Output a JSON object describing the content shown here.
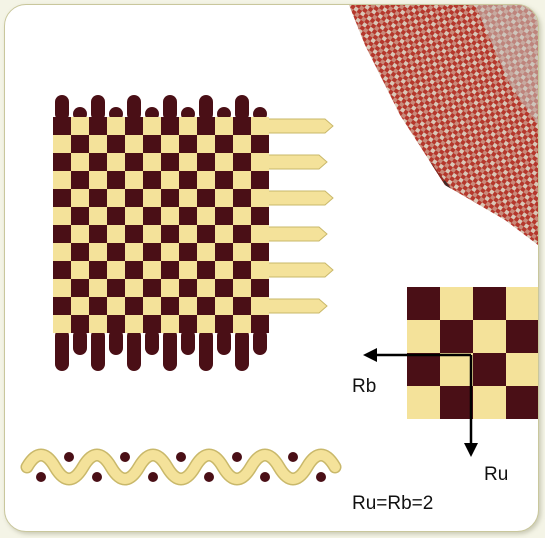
{
  "colors": {
    "dark": "#4a0f16",
    "light": "#f4e29a",
    "light_outline": "#c9b86a",
    "fabric_red": "#b5372c",
    "arrow": "#000000"
  },
  "labels": {
    "rb": "Rb",
    "ru": "Ru",
    "formula": "Ru=Rb=2"
  }
}
